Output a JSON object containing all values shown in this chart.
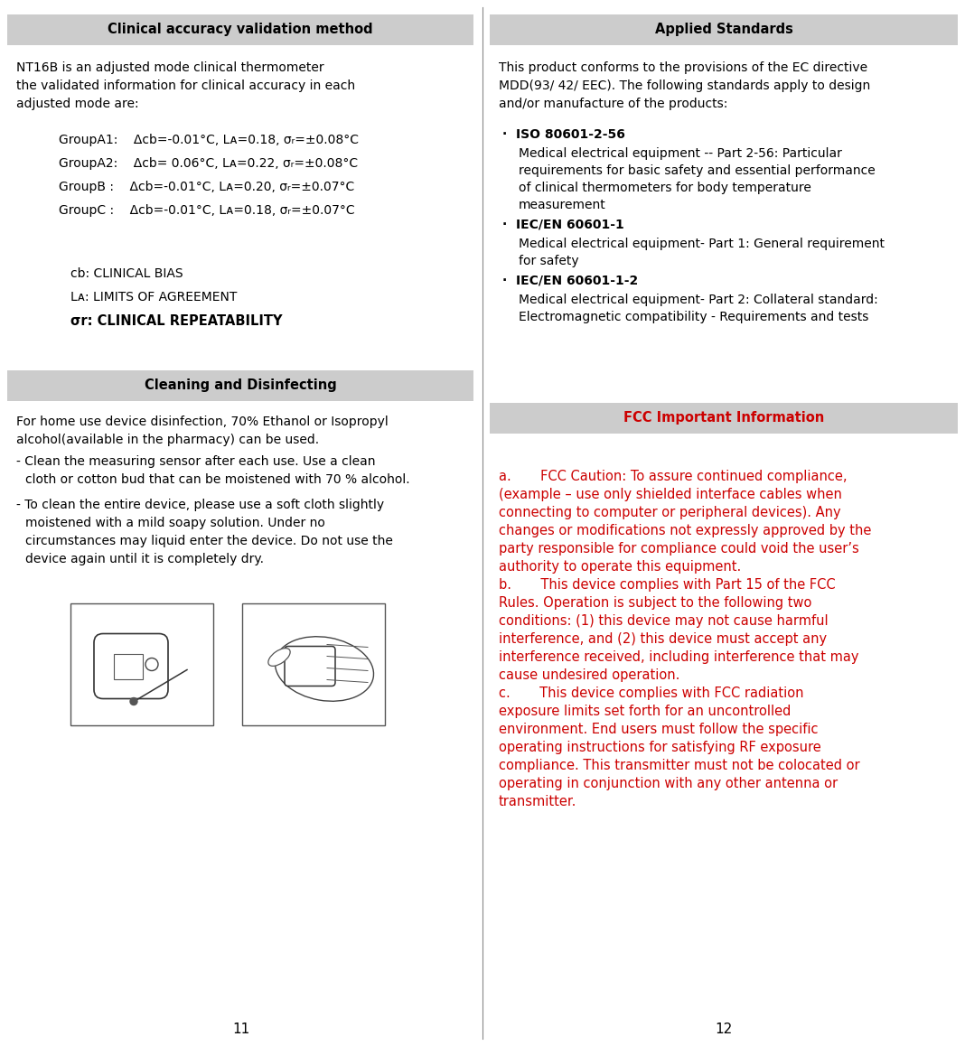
{
  "bg_color": "#ffffff",
  "header_bg": "#cccccc",
  "divider_color": "#888888",
  "text_color": "#000000",
  "red_color": "#cc0000",
  "left_header1": "Clinical accuracy validation method",
  "left_header2": "Cleaning and Disinfecting",
  "right_header1": "Applied Standards",
  "right_header2": "FCC Important Information",
  "page_num_left": "11",
  "page_num_right": "12",
  "group_lines": [
    "GroupA1:    Δcb=-0.01°C, Lᴀ=0.18, σᵣ=±0.08°C",
    "GroupA2:    Δcb= 0.06°C, Lᴀ=0.22, σᵣ=±0.08°C",
    "GroupB :    Δcb=-0.01°C, Lᴀ=0.20, σᵣ=±0.07°C",
    "GroupC :    Δcb=-0.01°C, Lᴀ=0.18, σᵣ=±0.07°C"
  ],
  "fcc_lines_a": [
    "a.       FCC Caution: To assure continued compliance,",
    "(example – use only shielded interface cables when",
    "connecting to computer or peripheral devices). Any",
    "changes or modifications not expressly approved by the",
    "party responsible for compliance could void the user’s",
    "authority to operate this equipment."
  ],
  "fcc_lines_b": [
    "b.       This device complies with Part 15 of the FCC",
    "Rules. Operation is subject to the following two",
    "conditions: (1) this device may not cause harmful",
    "interference, and (2) this device must accept any",
    "interference received, including interference that may",
    "cause undesired operation."
  ],
  "fcc_lines_c": [
    "c.       This device complies with FCC radiation",
    "exposure limits set forth for an uncontrolled",
    "environment. End users must follow the specific",
    "operating instructions for satisfying RF exposure",
    "compliance. This transmitter must not be colocated or",
    "operating in conjunction with any other antenna or",
    "transmitter."
  ],
  "standards": [
    {
      "title": "ISO 80601-2-56",
      "body_lines": [
        "Medical electrical equipment -- Part 2-56: Particular",
        "requirements for basic safety and essential performance",
        "of clinical thermometers for body temperature",
        "measurement"
      ]
    },
    {
      "title": "IEC/EN 60601-1",
      "body_lines": [
        "Medical electrical equipment- Part 1: General requirement",
        "for safety"
      ]
    },
    {
      "title": "IEC/EN 60601-1-2",
      "body_lines": [
        "Medical electrical equipment- Part 2: Collateral standard:",
        "Electromagnetic compatibility - Requirements and tests"
      ]
    }
  ]
}
